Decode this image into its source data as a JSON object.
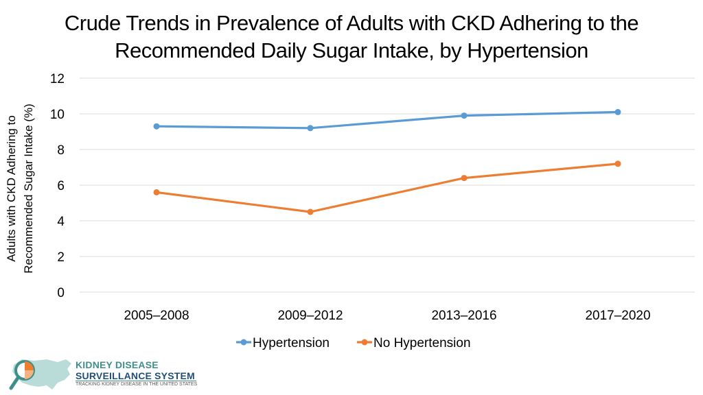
{
  "title": {
    "line1": "Crude Trends in Prevalence of Adults with CKD Adhering to the",
    "line2": "Recommended Daily Sugar Intake, by Hypertension"
  },
  "chart_data": {
    "type": "line",
    "title": "Crude Trends in Prevalence of Adults with CKD Adhering to the Recommended Daily Sugar Intake, by Hypertension",
    "categories": [
      "2005–2008",
      "2009–2012",
      "2013–2016",
      "2017–2020"
    ],
    "series": [
      {
        "name": "Hypertension",
        "color": "#5b9bd5",
        "values": [
          9.3,
          9.2,
          9.9,
          10.1
        ]
      },
      {
        "name": "No Hypertension",
        "color": "#ed7d31",
        "values": [
          5.6,
          4.5,
          6.4,
          7.2
        ]
      }
    ],
    "ylabel_lines": [
      "Adults with CKD Adhering to",
      "Recommended Sugar Intake (%)"
    ],
    "xlabel": "",
    "ylim": [
      0,
      12
    ],
    "yticks": [
      0,
      2,
      4,
      6,
      8,
      10,
      12
    ],
    "grid": true,
    "legend": "bottom-center"
  },
  "logo": {
    "line1": "KIDNEY DISEASE",
    "line2": "SURVEILLANCE SYSTEM",
    "tagline": "TRACKING KIDNEY DISEASE IN THE UNITED STATES"
  }
}
